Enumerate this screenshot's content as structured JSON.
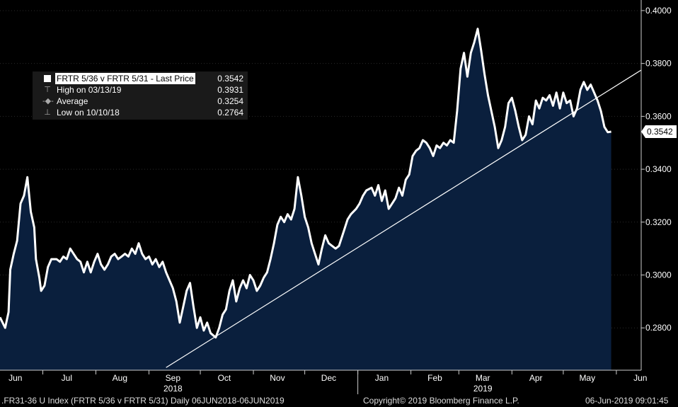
{
  "legend": {
    "series_label": "FRTR 5/36 v FRTR 5/31 - Last Price",
    "series_value": "0.3542",
    "high_label": "High on 03/13/19",
    "high_value": "0.3931",
    "average_label": "Average",
    "average_value": "0.3254",
    "low_label": "Low on 10/10/18",
    "low_value": "0.2764"
  },
  "footer": {
    "ticker": ".FR31-36 U Index (FRTR 5/36 v FRTR 5/31)  Daily 06JUN2018-06JUN2019",
    "copyright": "Copyright© 2019 Bloomberg Finance L.P.",
    "timestamp": "06-Jun-2019 09:01:45"
  },
  "chart_data": {
    "type": "area",
    "title": "",
    "xlabel": "",
    "ylabel": "",
    "series_name": "FRTR 5/36 v FRTR 5/31 - Last Price",
    "ylim": [
      0.264,
      0.404
    ],
    "y_ticks": [
      "0.2800",
      "0.3000",
      "0.3200",
      "0.3400",
      "0.3600",
      "0.3800",
      "0.4000"
    ],
    "y_tick_values": [
      0.28,
      0.3,
      0.32,
      0.34,
      0.36,
      0.38,
      0.4
    ],
    "x_range": [
      "2018-06-06",
      "2019-06-06"
    ],
    "x_ticks": [
      {
        "label": "Jun",
        "date": "2018-06-15"
      },
      {
        "label": "Jul",
        "date": "2018-07-15"
      },
      {
        "label": "Aug",
        "date": "2018-08-15"
      },
      {
        "label": "Sep",
        "date": "2018-09-15"
      },
      {
        "label": "Oct",
        "date": "2018-10-15"
      },
      {
        "label": "Nov",
        "date": "2018-11-15"
      },
      {
        "label": "Dec",
        "date": "2018-12-15"
      },
      {
        "label": "Jan",
        "date": "2019-01-15"
      },
      {
        "label": "Feb",
        "date": "2019-02-15"
      },
      {
        "label": "Mar",
        "date": "2019-03-15"
      },
      {
        "label": "Apr",
        "date": "2019-04-15"
      },
      {
        "label": "May",
        "date": "2019-05-15"
      },
      {
        "label": "Jun",
        "date": "2019-06-15"
      }
    ],
    "year_labels": [
      {
        "label": "2018",
        "date": "2018-09-15"
      },
      {
        "label": "2019",
        "date": "2019-03-15"
      }
    ],
    "last_value_label": "0.3542",
    "points": [
      [
        "2018-06-06",
        0.284
      ],
      [
        "2018-06-09",
        0.28
      ],
      [
        "2018-06-11",
        0.286
      ],
      [
        "2018-06-12",
        0.302
      ],
      [
        "2018-06-14",
        0.308
      ],
      [
        "2018-06-16",
        0.313
      ],
      [
        "2018-06-18",
        0.327
      ],
      [
        "2018-06-20",
        0.33
      ],
      [
        "2018-06-22",
        0.337
      ],
      [
        "2018-06-24",
        0.324
      ],
      [
        "2018-06-26",
        0.318
      ],
      [
        "2018-06-27",
        0.306
      ],
      [
        "2018-06-29",
        0.299
      ],
      [
        "2018-06-30",
        0.294
      ],
      [
        "2018-07-02",
        0.296
      ],
      [
        "2018-07-04",
        0.303
      ],
      [
        "2018-07-06",
        0.306
      ],
      [
        "2018-07-09",
        0.306
      ],
      [
        "2018-07-11",
        0.305
      ],
      [
        "2018-07-13",
        0.307
      ],
      [
        "2018-07-15",
        0.306
      ],
      [
        "2018-07-17",
        0.31
      ],
      [
        "2018-07-19",
        0.308
      ],
      [
        "2018-07-21",
        0.306
      ],
      [
        "2018-07-23",
        0.305
      ],
      [
        "2018-07-25",
        0.301
      ],
      [
        "2018-07-27",
        0.305
      ],
      [
        "2018-07-29",
        0.301
      ],
      [
        "2018-07-31",
        0.305
      ],
      [
        "2018-08-02",
        0.308
      ],
      [
        "2018-08-04",
        0.304
      ],
      [
        "2018-08-06",
        0.302
      ],
      [
        "2018-08-08",
        0.304
      ],
      [
        "2018-08-10",
        0.307
      ],
      [
        "2018-08-12",
        0.308
      ],
      [
        "2018-08-14",
        0.306
      ],
      [
        "2018-08-16",
        0.307
      ],
      [
        "2018-08-18",
        0.308
      ],
      [
        "2018-08-20",
        0.307
      ],
      [
        "2018-08-22",
        0.31
      ],
      [
        "2018-08-24",
        0.308
      ],
      [
        "2018-08-26",
        0.312
      ],
      [
        "2018-08-28",
        0.308
      ],
      [
        "2018-08-30",
        0.306
      ],
      [
        "2018-09-01",
        0.307
      ],
      [
        "2018-09-03",
        0.304
      ],
      [
        "2018-09-05",
        0.306
      ],
      [
        "2018-09-07",
        0.303
      ],
      [
        "2018-09-09",
        0.305
      ],
      [
        "2018-09-11",
        0.301
      ],
      [
        "2018-09-13",
        0.298
      ],
      [
        "2018-09-15",
        0.295
      ],
      [
        "2018-09-17",
        0.29
      ],
      [
        "2018-09-19",
        0.282
      ],
      [
        "2018-09-21",
        0.288
      ],
      [
        "2018-09-23",
        0.294
      ],
      [
        "2018-09-25",
        0.297
      ],
      [
        "2018-09-27",
        0.288
      ],
      [
        "2018-09-29",
        0.28
      ],
      [
        "2018-10-01",
        0.284
      ],
      [
        "2018-10-03",
        0.279
      ],
      [
        "2018-10-05",
        0.282
      ],
      [
        "2018-10-07",
        0.278
      ],
      [
        "2018-10-10",
        0.2764
      ],
      [
        "2018-10-12",
        0.28
      ],
      [
        "2018-10-14",
        0.285
      ],
      [
        "2018-10-16",
        0.287
      ],
      [
        "2018-10-18",
        0.294
      ],
      [
        "2018-10-20",
        0.298
      ],
      [
        "2018-10-22",
        0.29
      ],
      [
        "2018-10-24",
        0.295
      ],
      [
        "2018-10-26",
        0.298
      ],
      [
        "2018-10-28",
        0.295
      ],
      [
        "2018-10-30",
        0.3
      ],
      [
        "2018-11-01",
        0.298
      ],
      [
        "2018-11-03",
        0.294
      ],
      [
        "2018-11-05",
        0.296
      ],
      [
        "2018-11-07",
        0.299
      ],
      [
        "2018-11-09",
        0.301
      ],
      [
        "2018-11-11",
        0.306
      ],
      [
        "2018-11-13",
        0.312
      ],
      [
        "2018-11-15",
        0.319
      ],
      [
        "2018-11-17",
        0.322
      ],
      [
        "2018-11-19",
        0.32
      ],
      [
        "2018-11-21",
        0.323
      ],
      [
        "2018-11-23",
        0.321
      ],
      [
        "2018-11-25",
        0.325
      ],
      [
        "2018-11-27",
        0.337
      ],
      [
        "2018-11-29",
        0.33
      ],
      [
        "2018-12-01",
        0.322
      ],
      [
        "2018-12-03",
        0.318
      ],
      [
        "2018-12-05",
        0.312
      ],
      [
        "2018-12-07",
        0.308
      ],
      [
        "2018-12-09",
        0.304
      ],
      [
        "2018-12-11",
        0.31
      ],
      [
        "2018-12-13",
        0.315
      ],
      [
        "2018-12-15",
        0.312
      ],
      [
        "2018-12-17",
        0.311
      ],
      [
        "2018-12-19",
        0.31
      ],
      [
        "2018-12-21",
        0.311
      ],
      [
        "2018-12-24",
        0.317
      ],
      [
        "2018-12-26",
        0.321
      ],
      [
        "2018-12-28",
        0.323
      ],
      [
        "2018-12-31",
        0.325
      ],
      [
        "2019-01-02",
        0.327
      ],
      [
        "2019-01-04",
        0.33
      ],
      [
        "2019-01-06",
        0.332
      ],
      [
        "2019-01-09",
        0.333
      ],
      [
        "2019-01-11",
        0.33
      ],
      [
        "2019-01-13",
        0.334
      ],
      [
        "2019-01-15",
        0.328
      ],
      [
        "2019-01-17",
        0.332
      ],
      [
        "2019-01-19",
        0.325
      ],
      [
        "2019-01-21",
        0.327
      ],
      [
        "2019-01-23",
        0.329
      ],
      [
        "2019-01-25",
        0.333
      ],
      [
        "2019-01-27",
        0.33
      ],
      [
        "2019-01-29",
        0.336
      ],
      [
        "2019-01-31",
        0.338
      ],
      [
        "2019-02-02",
        0.345
      ],
      [
        "2019-02-04",
        0.347
      ],
      [
        "2019-02-06",
        0.348
      ],
      [
        "2019-02-08",
        0.351
      ],
      [
        "2019-02-10",
        0.35
      ],
      [
        "2019-02-12",
        0.348
      ],
      [
        "2019-02-14",
        0.345
      ],
      [
        "2019-02-16",
        0.349
      ],
      [
        "2019-02-18",
        0.348
      ],
      [
        "2019-02-20",
        0.35
      ],
      [
        "2019-02-22",
        0.349
      ],
      [
        "2019-02-24",
        0.351
      ],
      [
        "2019-02-26",
        0.35
      ],
      [
        "2019-02-28",
        0.362
      ],
      [
        "2019-03-02",
        0.378
      ],
      [
        "2019-03-04",
        0.384
      ],
      [
        "2019-03-06",
        0.375
      ],
      [
        "2019-03-08",
        0.384
      ],
      [
        "2019-03-10",
        0.388
      ],
      [
        "2019-03-12",
        0.3931
      ],
      [
        "2019-03-14",
        0.385
      ],
      [
        "2019-03-16",
        0.376
      ],
      [
        "2019-03-18",
        0.368
      ],
      [
        "2019-03-20",
        0.362
      ],
      [
        "2019-03-22",
        0.356
      ],
      [
        "2019-03-24",
        0.348
      ],
      [
        "2019-03-26",
        0.351
      ],
      [
        "2019-03-28",
        0.356
      ],
      [
        "2019-03-30",
        0.365
      ],
      [
        "2019-04-01",
        0.367
      ],
      [
        "2019-04-03",
        0.362
      ],
      [
        "2019-04-05",
        0.356
      ],
      [
        "2019-04-07",
        0.351
      ],
      [
        "2019-04-09",
        0.353
      ],
      [
        "2019-04-11",
        0.36
      ],
      [
        "2019-04-13",
        0.357
      ],
      [
        "2019-04-15",
        0.366
      ],
      [
        "2019-04-17",
        0.363
      ],
      [
        "2019-04-19",
        0.367
      ],
      [
        "2019-04-21",
        0.366
      ],
      [
        "2019-04-23",
        0.368
      ],
      [
        "2019-04-25",
        0.364
      ],
      [
        "2019-04-27",
        0.369
      ],
      [
        "2019-04-29",
        0.363
      ],
      [
        "2019-05-01",
        0.369
      ],
      [
        "2019-05-03",
        0.365
      ],
      [
        "2019-05-05",
        0.366
      ],
      [
        "2019-05-07",
        0.36
      ],
      [
        "2019-05-09",
        0.363
      ],
      [
        "2019-05-11",
        0.37
      ],
      [
        "2019-05-13",
        0.373
      ],
      [
        "2019-05-15",
        0.37
      ],
      [
        "2019-05-17",
        0.372
      ],
      [
        "2019-05-19",
        0.369
      ],
      [
        "2019-05-21",
        0.366
      ],
      [
        "2019-05-23",
        0.362
      ],
      [
        "2019-05-25",
        0.356
      ],
      [
        "2019-05-27",
        0.354
      ],
      [
        "2019-05-29",
        0.3542
      ]
    ],
    "trendline": {
      "start": [
        "2018-09-11",
        0.265
      ],
      "end": [
        "2019-06-06",
        0.3775
      ]
    }
  }
}
